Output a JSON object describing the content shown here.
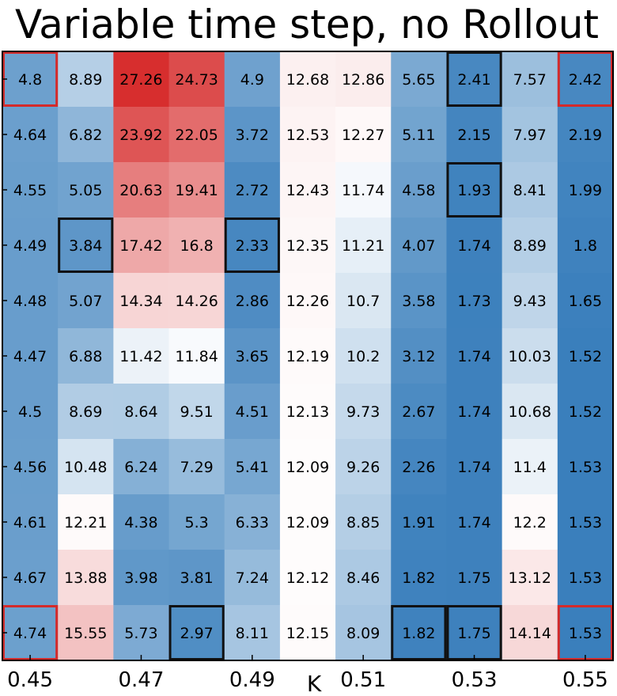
{
  "chart_data": {
    "type": "heatmap",
    "title": "Variable time step, no Rollout",
    "xlabel": "K",
    "ylabel": "",
    "x_tick_labels": [
      "0.45",
      "0.47",
      "0.49",
      "0.51",
      "0.53",
      "0.55"
    ],
    "x_tick_values": [
      0.45,
      0.47,
      0.49,
      0.51,
      0.53,
      0.55
    ],
    "x_column_values": [
      0.45,
      0.46,
      0.47,
      0.48,
      0.49,
      0.5,
      0.51,
      0.52,
      0.53,
      0.54,
      0.55
    ],
    "y_tick_labels": [],
    "rows": 11,
    "cols": 11,
    "values": [
      [
        4.8,
        8.89,
        27.26,
        24.73,
        4.9,
        12.68,
        12.86,
        5.65,
        2.41,
        7.57,
        2.42
      ],
      [
        4.64,
        6.82,
        23.92,
        22.05,
        3.72,
        12.53,
        12.27,
        5.11,
        2.15,
        7.97,
        2.19
      ],
      [
        4.55,
        5.05,
        20.63,
        19.41,
        2.72,
        12.43,
        11.74,
        4.58,
        1.93,
        8.41,
        1.99
      ],
      [
        4.49,
        3.84,
        17.42,
        16.8,
        2.33,
        12.35,
        11.21,
        4.07,
        1.74,
        8.89,
        1.8
      ],
      [
        4.48,
        5.07,
        14.34,
        14.26,
        2.86,
        12.26,
        10.7,
        3.58,
        1.73,
        9.43,
        1.65
      ],
      [
        4.47,
        6.88,
        11.42,
        11.84,
        3.65,
        12.19,
        10.2,
        3.12,
        1.74,
        10.03,
        1.52
      ],
      [
        4.5,
        8.69,
        8.64,
        9.51,
        4.51,
        12.13,
        9.73,
        2.67,
        1.74,
        10.68,
        1.52
      ],
      [
        4.56,
        10.48,
        6.24,
        7.29,
        5.41,
        12.09,
        9.26,
        2.26,
        1.74,
        11.4,
        1.53
      ],
      [
        4.61,
        12.21,
        4.38,
        5.3,
        6.33,
        12.09,
        8.85,
        1.91,
        1.74,
        12.2,
        1.53
      ],
      [
        4.67,
        13.88,
        3.98,
        3.81,
        7.24,
        12.12,
        8.46,
        1.82,
        1.75,
        13.12,
        1.53
      ],
      [
        4.74,
        15.55,
        5.73,
        2.97,
        8.11,
        12.15,
        8.09,
        1.82,
        1.75,
        14.14,
        1.53
      ]
    ],
    "colormap": {
      "low": "#3a7fbc",
      "mid": "#ffffff",
      "high": "#d62b2b",
      "low_value": 1.5,
      "mid_value": 12.0,
      "high_value": 27.5
    },
    "highlight_black": [
      [
        0,
        8
      ],
      [
        3,
        1
      ],
      [
        3,
        4
      ],
      [
        10,
        3
      ],
      [
        10,
        7
      ],
      [
        10,
        8
      ],
      [
        2,
        8
      ]
    ],
    "highlight_red": [
      [
        0,
        0
      ],
      [
        0,
        10
      ],
      [
        10,
        0
      ],
      [
        10,
        10
      ]
    ],
    "colors": {
      "black_highlight": "#111111",
      "red_highlight": "#d42a2a"
    },
    "grid": false
  }
}
